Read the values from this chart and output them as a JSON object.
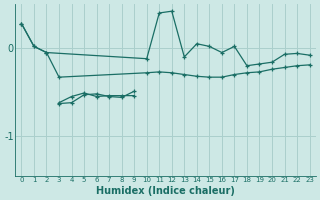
{
  "xlabel": "Humidex (Indice chaleur)",
  "bg_color": "#cde8e5",
  "grid_color": "#aacfcc",
  "line_color": "#1a6e65",
  "x_ticks": [
    0,
    1,
    2,
    3,
    4,
    5,
    6,
    7,
    8,
    9,
    10,
    11,
    12,
    13,
    14,
    15,
    16,
    17,
    18,
    19,
    20,
    21,
    22,
    23
  ],
  "ylim": [
    -1.45,
    0.5
  ],
  "xlim": [
    -0.5,
    23.5
  ],
  "series1_x": [
    0,
    1,
    2,
    10,
    11,
    12,
    13,
    14,
    15,
    16,
    17,
    18,
    19,
    20,
    21,
    22,
    23
  ],
  "series1_y": [
    0.28,
    0.02,
    -0.05,
    -0.12,
    0.4,
    0.42,
    -0.1,
    0.05,
    0.02,
    -0.05,
    0.02,
    -0.2,
    -0.18,
    -0.16,
    -0.07,
    -0.06,
    -0.08
  ],
  "series2_x": [
    0,
    1,
    2,
    3,
    10,
    11,
    12,
    13,
    14,
    15,
    16,
    17,
    18,
    19,
    20,
    21,
    22,
    23
  ],
  "series2_y": [
    0.28,
    0.02,
    -0.05,
    -0.33,
    -0.28,
    -0.27,
    -0.28,
    -0.3,
    -0.32,
    -0.33,
    -0.33,
    -0.3,
    -0.28,
    -0.27,
    -0.24,
    -0.22,
    -0.2,
    -0.19
  ],
  "series3_x": [
    3,
    4,
    5,
    6,
    7,
    8,
    9
  ],
  "series3_y": [
    -0.62,
    -0.55,
    -0.51,
    -0.55,
    -0.54,
    -0.54,
    -0.54
  ],
  "series4_x": [
    3,
    4,
    5,
    6,
    7,
    8,
    9
  ],
  "series4_y": [
    -0.63,
    -0.62,
    -0.53,
    -0.52,
    -0.55,
    -0.56,
    -0.49
  ]
}
